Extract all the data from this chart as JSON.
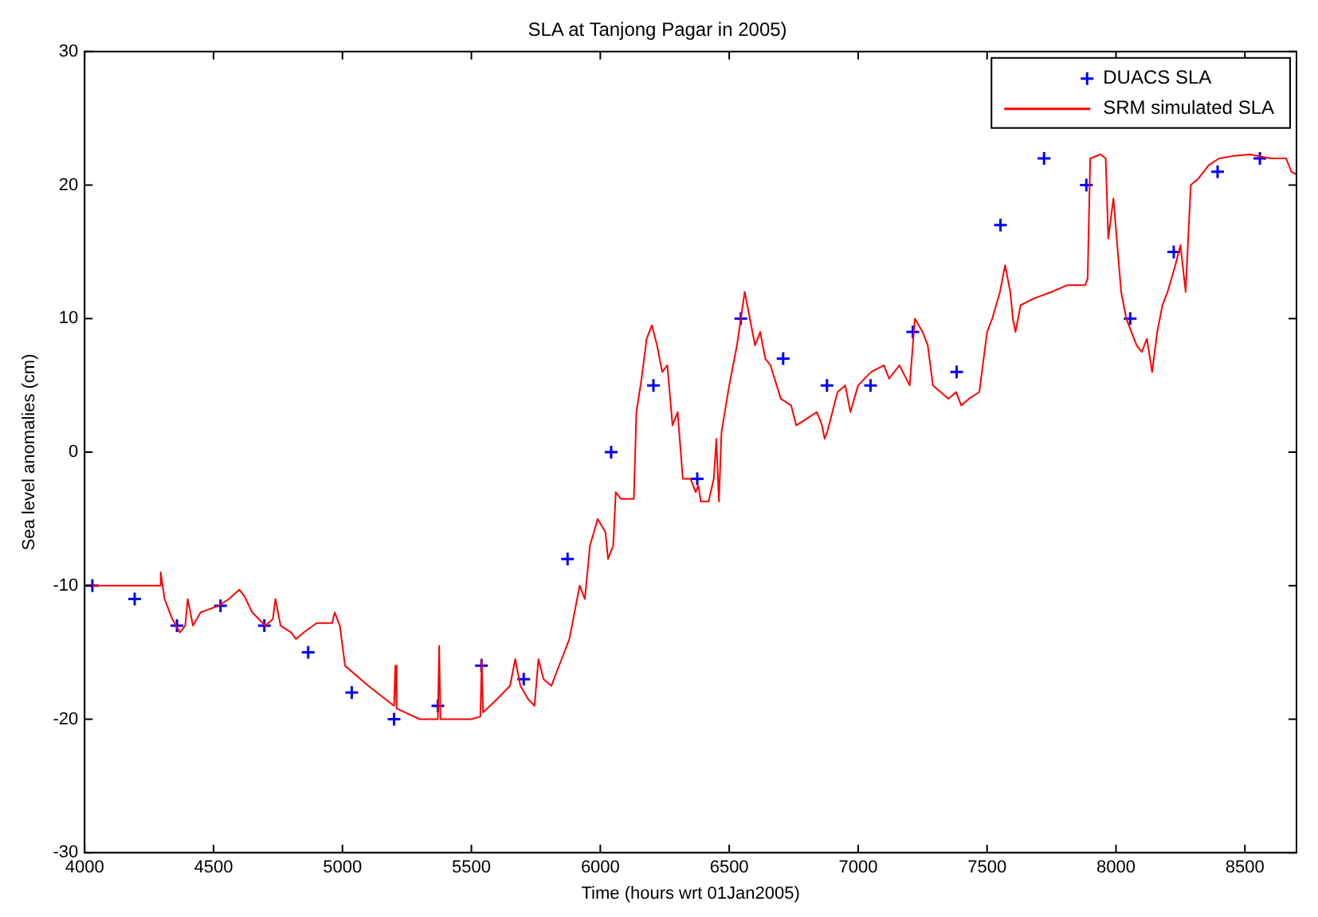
{
  "chart_data": {
    "type": "line",
    "title": "SLA at Tanjong Pagar in 2005)",
    "xlabel": "Time (hours wrt 01Jan2005)",
    "ylabel": "Sea level anomalies (cm)",
    "xlim": [
      4000,
      8700
    ],
    "xticks": [
      4000,
      4500,
      5000,
      5500,
      6000,
      6500,
      7000,
      7500,
      8000,
      8500
    ],
    "ylim": [
      -30,
      30
    ],
    "yticks": [
      -30,
      -20,
      -10,
      0,
      10,
      20,
      30
    ],
    "grid": false,
    "legend": "top right",
    "series": [
      {
        "name": "DUACS SLA",
        "type": "scatter",
        "marker": "cross",
        "color": "#0000ff",
        "x": [
          4030,
          4194,
          4358,
          4527,
          4697,
          4867,
          5036,
          5200,
          5370,
          5539,
          5703,
          5873,
          6042,
          6206,
          6376,
          6545,
          6709,
          6879,
          7048,
          7212,
          7382,
          7552,
          7721,
          7885,
          8055,
          8224,
          8394,
          8558
        ],
        "values": [
          -10,
          -11,
          -13,
          -11.5,
          -13,
          -15,
          -18,
          -20,
          -19,
          -16,
          -17,
          -8,
          0,
          5,
          -2,
          10,
          7,
          5,
          5,
          9,
          6,
          17,
          22,
          20,
          10,
          15,
          21,
          22
        ]
      },
      {
        "name": "SRM simulated SLA",
        "type": "line",
        "marker": "none",
        "line_style": "solid",
        "color": "#ff0000",
        "x": [
          4000,
          4290,
          4295,
          4310,
          4340,
          4370,
          4390,
          4400,
          4420,
          4450,
          4520,
          4560,
          4600,
          4620,
          4650,
          4700,
          4730,
          4740,
          4760,
          4800,
          4820,
          4850,
          4900,
          4960,
          4970,
          4990,
          5010,
          5100,
          5200,
          5205,
          5210,
          5300,
          5370,
          5375,
          5380,
          5450,
          5500,
          5535,
          5540,
          5545,
          5600,
          5650,
          5670,
          5690,
          5720,
          5745,
          5760,
          5780,
          5810,
          5830,
          5850,
          5880,
          5900,
          5920,
          5940,
          5960,
          5990,
          6020,
          6030,
          6050,
          6060,
          6080,
          6130,
          6140,
          6160,
          6180,
          6200,
          6220,
          6240,
          6260,
          6280,
          6300,
          6320,
          6350,
          6370,
          6380,
          6390,
          6420,
          6440,
          6450,
          6460,
          6470,
          6500,
          6530,
          6560,
          6580,
          6600,
          6620,
          6640,
          6660,
          6700,
          6740,
          6760,
          6800,
          6840,
          6860,
          6870,
          6880,
          6900,
          6920,
          6950,
          6970,
          7000,
          7050,
          7100,
          7120,
          7160,
          7200,
          7220,
          7250,
          7270,
          7290,
          7320,
          7350,
          7380,
          7400,
          7430,
          7470,
          7480,
          7500,
          7520,
          7550,
          7570,
          7590,
          7600,
          7610,
          7630,
          7680,
          7750,
          7810,
          7860,
          7880,
          7890,
          7900,
          7940,
          7960,
          7970,
          7990,
          8020,
          8040,
          8060,
          8080,
          8100,
          8120,
          8140,
          8160,
          8180,
          8200,
          8230,
          8250,
          8270,
          8290,
          8320,
          8360,
          8400,
          8460,
          8520,
          8600,
          8660,
          8680,
          8700
        ],
        "values": [
          -10,
          -10,
          -9,
          -11,
          -12.5,
          -13.5,
          -13,
          -11,
          -13,
          -12,
          -11.5,
          -11,
          -10.3,
          -10.8,
          -12,
          -13,
          -12.5,
          -11,
          -13,
          -13.5,
          -14,
          -13.5,
          -12.8,
          -12.8,
          -12,
          -13,
          -16,
          -17.5,
          -19,
          -16,
          -19.2,
          -20,
          -20,
          -14.5,
          -20,
          -20,
          -20,
          -19.8,
          -15.5,
          -19.5,
          -18.5,
          -17.5,
          -15.5,
          -17.5,
          -18.5,
          -19,
          -15.5,
          -17,
          -17.5,
          -16.5,
          -15.5,
          -14,
          -12,
          -10,
          -11,
          -7,
          -5,
          -6,
          -8,
          -7,
          -3,
          -3.5,
          -3.5,
          3,
          5.5,
          8.5,
          9.5,
          8,
          6,
          6.5,
          2,
          3,
          -2,
          -2,
          -3,
          -2.5,
          -3.7,
          -3.7,
          -2,
          1,
          -3.7,
          1.5,
          5,
          8,
          12,
          10,
          8,
          9,
          7,
          6.5,
          4,
          3.5,
          2,
          2.5,
          3,
          2,
          1,
          1.5,
          3,
          4.5,
          5,
          3,
          5,
          6,
          6.5,
          5.5,
          6.5,
          5,
          10,
          9,
          8,
          5,
          4.5,
          4,
          4.5,
          3.5,
          4,
          4.5,
          6,
          9,
          10,
          12,
          14,
          12,
          10,
          9,
          11,
          11.5,
          12,
          12.5,
          12.5,
          12.5,
          13,
          22,
          22.3,
          22,
          16,
          19,
          12,
          10,
          9,
          8,
          7.5,
          8.5,
          6,
          9,
          11,
          12,
          14,
          15.5,
          12,
          20,
          20.5,
          21.5,
          22,
          22.2,
          22.3,
          22,
          22,
          21,
          20.8
        ]
      }
    ]
  }
}
